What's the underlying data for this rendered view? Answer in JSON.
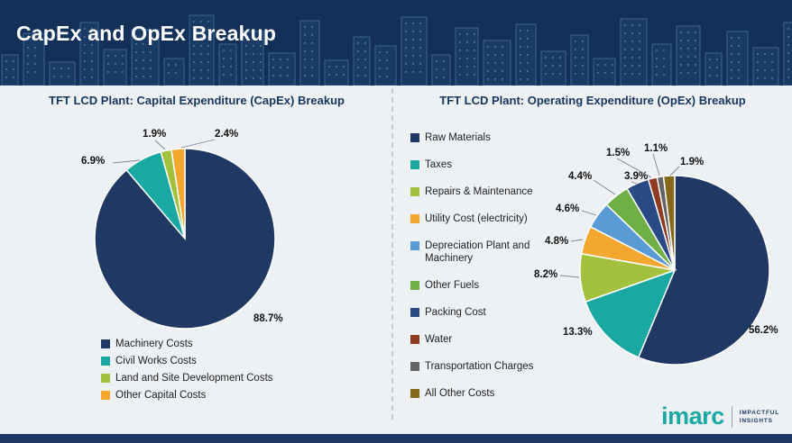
{
  "header": {
    "title": "CapEx and OpEx Breakup"
  },
  "chart_data": [
    {
      "type": "pie",
      "title": "TFT LCD Plant: Capital Expenditure (CapEx) Breakup",
      "labels": [
        "Machinery Costs",
        "Civil Works Costs",
        "Land and Site Development Costs",
        "Other Capital Costs"
      ],
      "values": [
        88.7,
        6.9,
        1.9,
        2.4
      ],
      "colors": [
        "#1f3864",
        "#1aa8a2",
        "#a3c13c",
        "#f3a72e"
      ],
      "legend_position": "bottom",
      "start_angle_deg": 0,
      "direction": "clockwise"
    },
    {
      "type": "pie",
      "title": "TFT LCD Plant: Operating Expenditure (OpEx) Breakup",
      "labels": [
        "Raw Materials",
        "Taxes",
        "Repairs & Maintenance",
        "Utility Cost (electricity)",
        "Depreciation Plant and Machinery",
        "Other Fuels",
        "Packing Cost",
        "Water",
        "Transportation Charges",
        "All Other Costs"
      ],
      "values": [
        56.2,
        13.3,
        8.2,
        4.8,
        4.6,
        4.4,
        3.9,
        1.5,
        1.1,
        1.9
      ],
      "colors": [
        "#1f3864",
        "#1aa8a2",
        "#a3c13c",
        "#f3a72e",
        "#5b9bd5",
        "#6faf46",
        "#2a4a85",
        "#8e3b22",
        "#636363",
        "#86681b"
      ],
      "legend_position": "left",
      "start_angle_deg": 0,
      "direction": "clockwise"
    }
  ],
  "footer": {
    "logo_text": "imarc",
    "tagline_line1": "IMPACTFUL",
    "tagline_line2": "INSIGHTS"
  }
}
